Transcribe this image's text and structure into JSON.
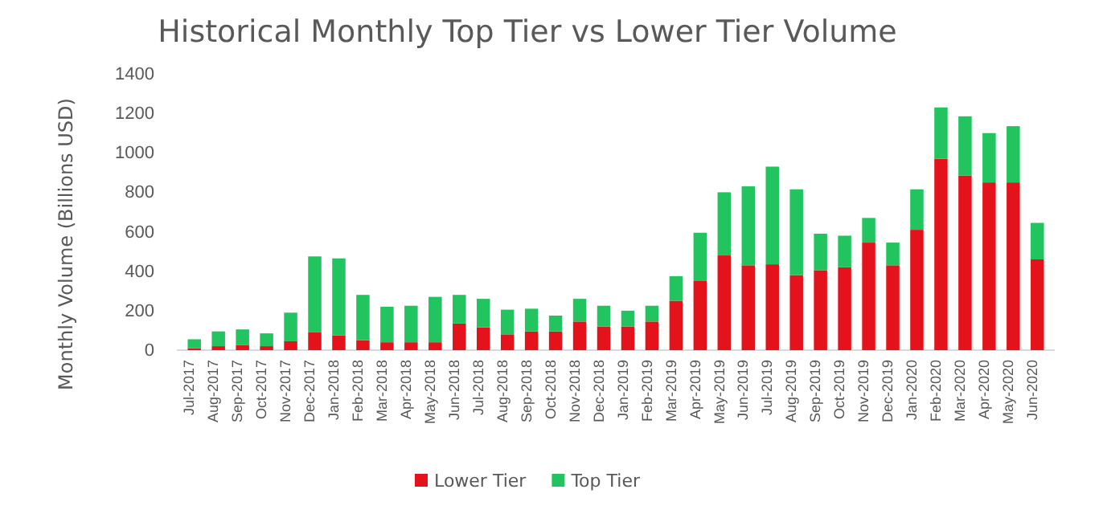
{
  "chart_data": {
    "type": "bar",
    "title": "Historical Monthly Top Tier vs Lower Tier Volume",
    "ylabel": "Monthly Volume (Billions USD)",
    "categories": [
      "Jul-2017",
      "Aug-2017",
      "Sep-2017",
      "Oct-2017",
      "Nov-2017",
      "Dec-2017",
      "Jan-2018",
      "Feb-2018",
      "Mar-2018",
      "Apr-2018",
      "May-2018",
      "Jun-2018",
      "Jul-2018",
      "Aug-2018",
      "Sep-2018",
      "Oct-2018",
      "Nov-2018",
      "Dec-2018",
      "Jan-2019",
      "Feb-2019",
      "Mar-2019",
      "Apr-2019",
      "May-2019",
      "Jun-2019",
      "Jul-2019",
      "Aug-2019",
      "Sep-2019",
      "Oct-2019",
      "Nov-2019",
      "Dec-2019",
      "Jan-2020",
      "Feb-2020",
      "Mar-2020",
      "Apr-2020",
      "May-2020",
      "Jun-2020"
    ],
    "stacked": true,
    "series": [
      {
        "name": "Lower Tier",
        "color": "#e3121b",
        "values": [
          10,
          20,
          25,
          20,
          45,
          90,
          75,
          50,
          40,
          40,
          40,
          135,
          115,
          80,
          95,
          95,
          145,
          120,
          120,
          145,
          250,
          350,
          480,
          430,
          435,
          380,
          405,
          420,
          545,
          430,
          610,
          970,
          885,
          850,
          850,
          460
        ]
      },
      {
        "name": "Top Tier",
        "color": "#21c45e",
        "values": [
          45,
          75,
          80,
          65,
          145,
          385,
          390,
          230,
          180,
          185,
          230,
          145,
          145,
          125,
          115,
          80,
          115,
          105,
          80,
          80,
          125,
          245,
          320,
          400,
          495,
          435,
          185,
          160,
          125,
          115,
          205,
          260,
          300,
          250,
          285,
          185
        ]
      }
    ],
    "ylim": [
      0,
      1400
    ],
    "yticks": [
      0,
      200,
      400,
      600,
      800,
      1000,
      1200,
      1400
    ],
    "grid": false,
    "legend": "bottom"
  }
}
